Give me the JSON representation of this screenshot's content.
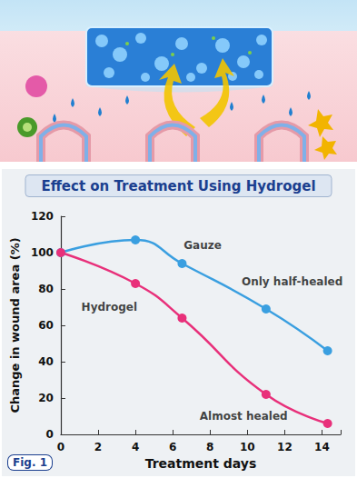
{
  "chart_data": {
    "type": "line",
    "title": "Effect on Treatment Using Hydrogel",
    "x_label": "Treatment days",
    "y_label": "Change in wound area (%)",
    "figure_label": "Fig. 1",
    "series": [
      {
        "name": "Gauze",
        "color": "#3a9fe0",
        "marker": "circle",
        "x": [
          0,
          4,
          6.5,
          11,
          14.3
        ],
        "values": [
          100,
          107,
          94,
          69,
          46
        ]
      },
      {
        "name": "Hydrogel",
        "color": "#e8307a",
        "marker": "circle",
        "x": [
          0,
          4,
          6.5,
          11,
          14.3
        ],
        "values": [
          100,
          83,
          64,
          22,
          6
        ]
      }
    ],
    "annotations": [
      {
        "text": "Gauze",
        "x": 7.6,
        "y": 104
      },
      {
        "text": "Hydrogel",
        "x": 2.6,
        "y": 70
      },
      {
        "text": "Only half-healed",
        "x": 12.4,
        "y": 84
      },
      {
        "text": "Almost healed",
        "x": 9.8,
        "y": 10
      }
    ],
    "xlim": [
      0,
      15
    ],
    "xticks": [
      0,
      2,
      4,
      6,
      8,
      10,
      12,
      14
    ],
    "ylim": [
      0,
      120
    ],
    "yticks": [
      0,
      20,
      40,
      60,
      80,
      100,
      120
    ],
    "grid": false
  }
}
